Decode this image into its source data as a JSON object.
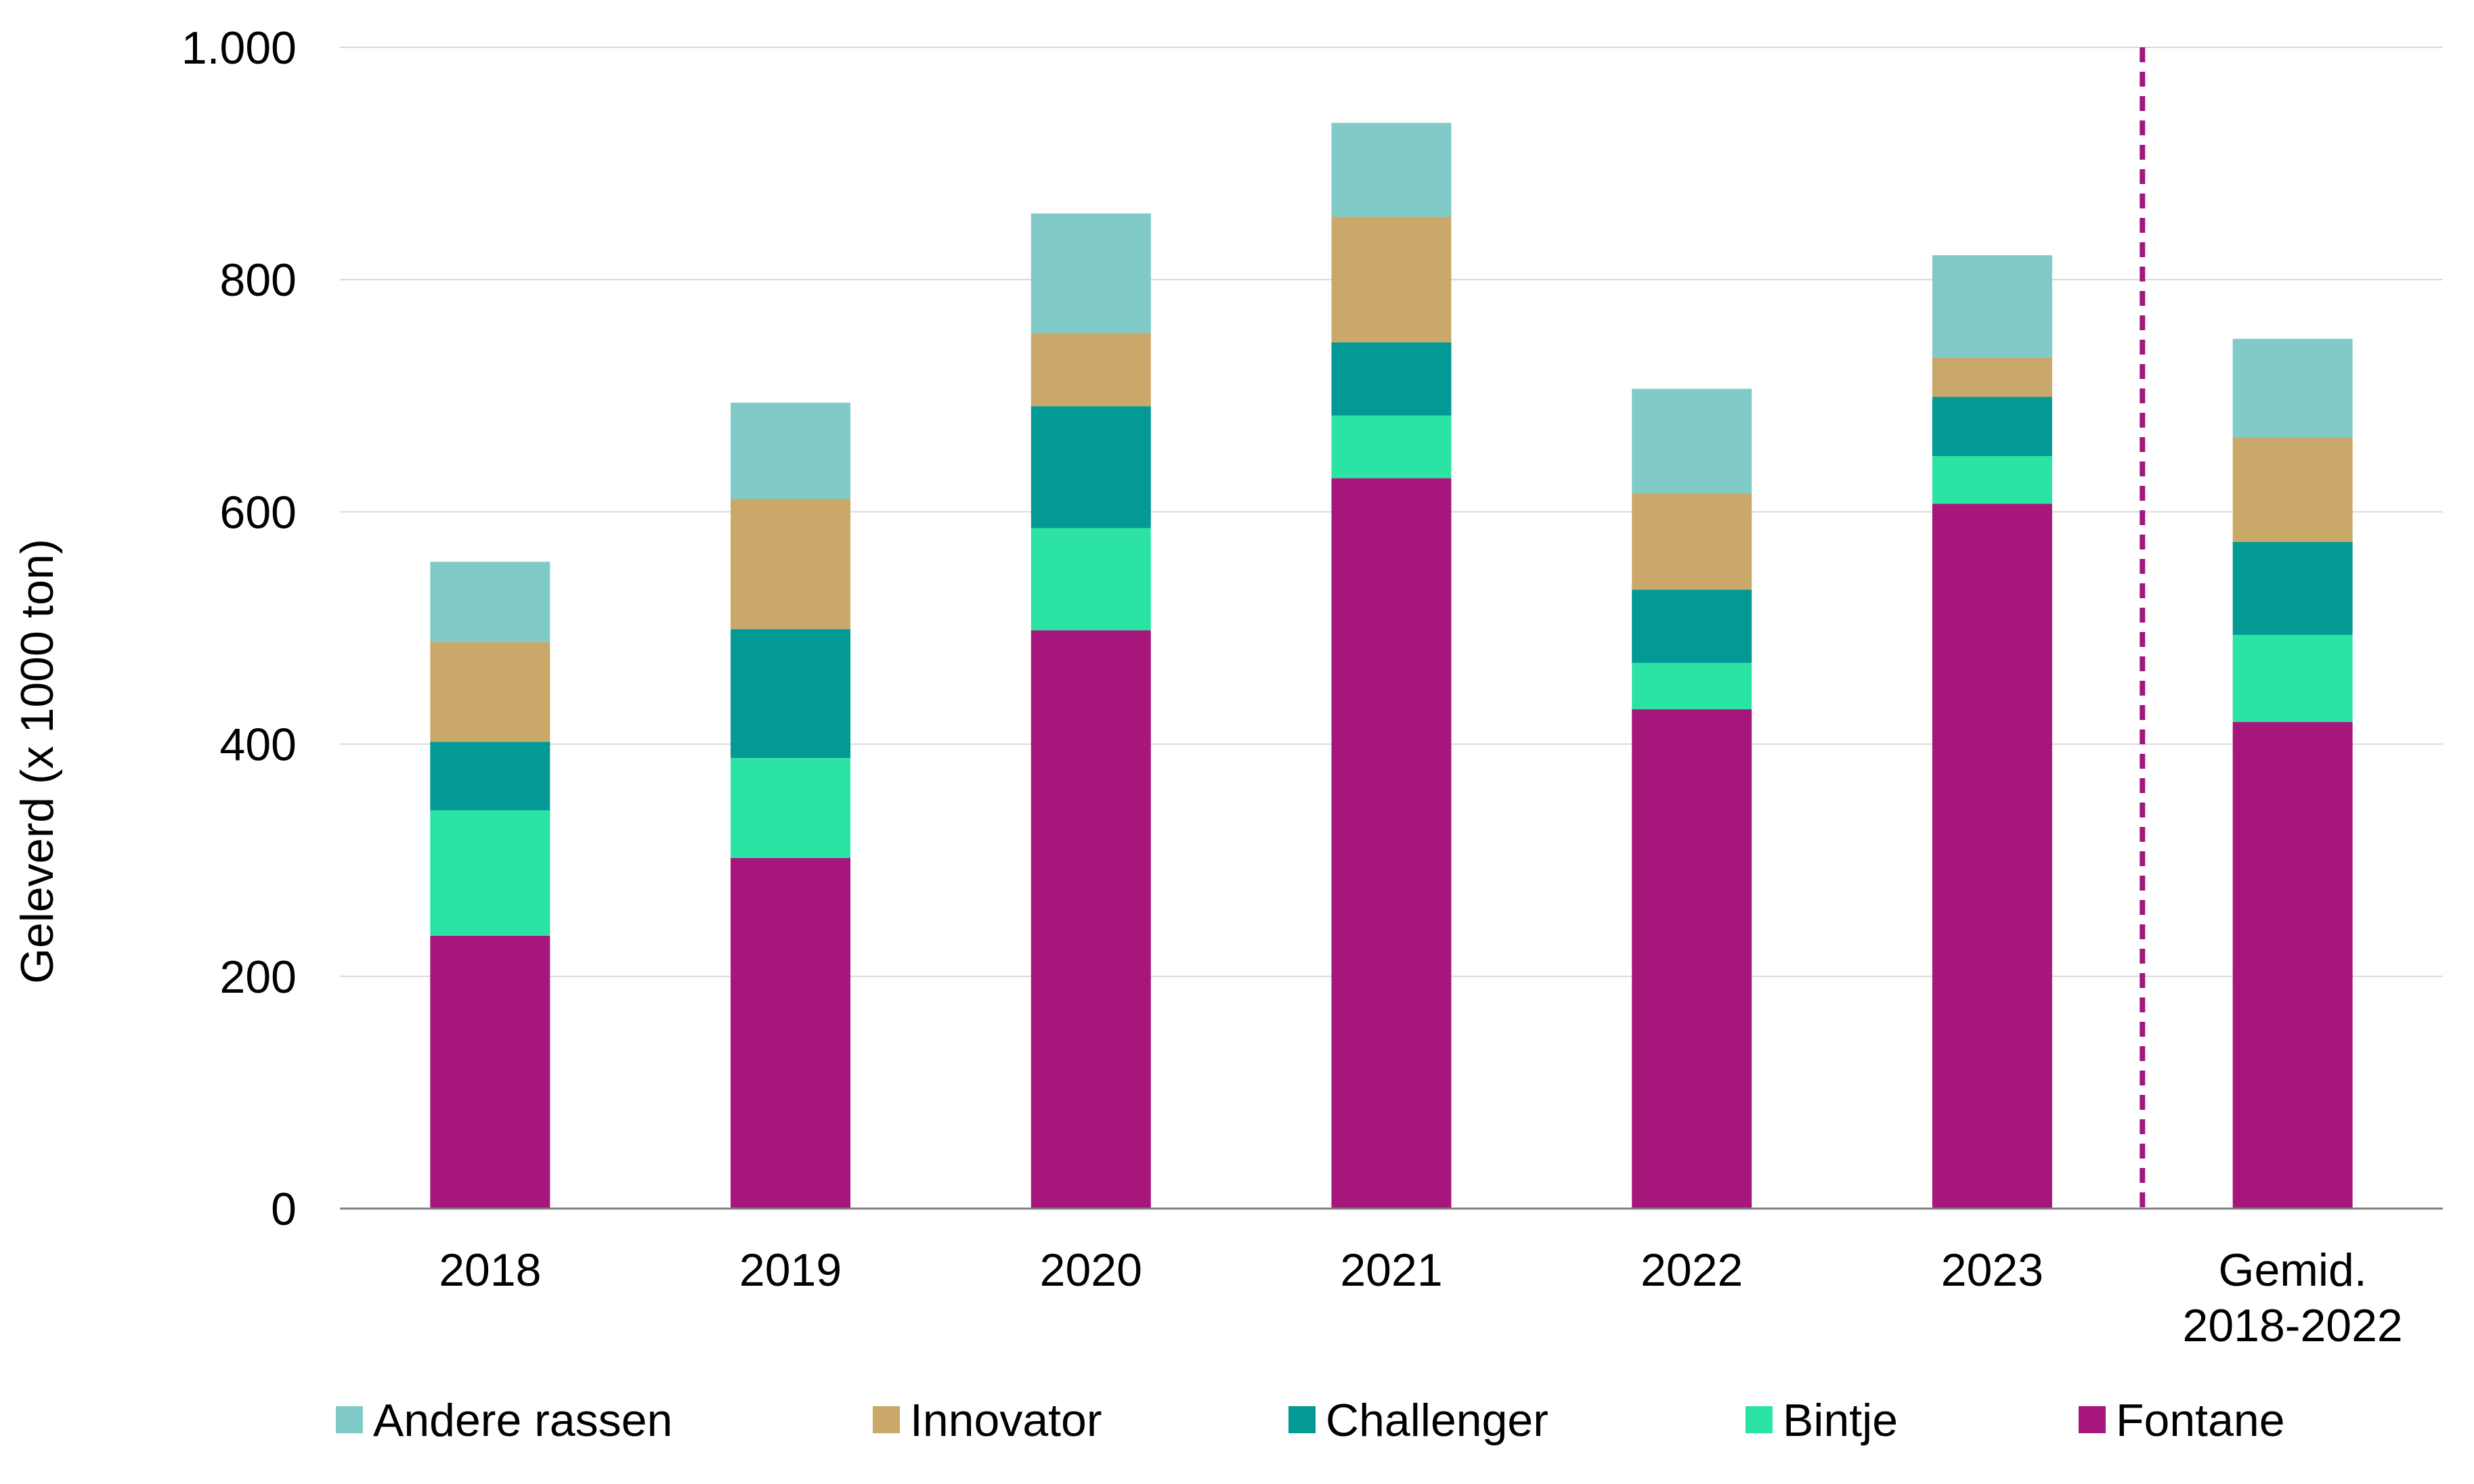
{
  "chart_data": {
    "type": "bar",
    "stacked": true,
    "title": "",
    "xlabel": "",
    "ylabel": "Geleverd (x 1000 ton)",
    "ylim": [
      0,
      1000
    ],
    "yticks": [
      0,
      200,
      400,
      600,
      800,
      1000
    ],
    "ytick_labels": [
      "0",
      "200",
      "400",
      "600",
      "800",
      "1.000"
    ],
    "grid": true,
    "legend_position": "bottom",
    "categories": [
      [
        "2018"
      ],
      [
        "2019"
      ],
      [
        "2020"
      ],
      [
        "2021"
      ],
      [
        "2022"
      ],
      [
        "2023"
      ],
      [
        "Gemid.",
        "2018-2022"
      ]
    ],
    "divider": {
      "after_category_index": 5,
      "style": "dashed",
      "color": "#a0177d"
    },
    "series": [
      {
        "name": "Fontane",
        "color": "#a6167b",
        "values": [
          235,
          302,
          498,
          629,
          430,
          607,
          419
        ]
      },
      {
        "name": "Bintje",
        "color": "#2be3a2",
        "values": [
          108,
          86,
          88,
          54,
          40,
          41,
          75
        ]
      },
      {
        "name": "Challenger",
        "color": "#039995",
        "values": [
          59,
          111,
          105,
          63,
          63,
          51,
          80
        ]
      },
      {
        "name": "Innovator",
        "color": "#c9a86a",
        "values": [
          86,
          112,
          63,
          108,
          83,
          34,
          90
        ]
      },
      {
        "name": "Andere rassen",
        "color": "#80cbc7",
        "values": [
          69,
          83,
          103,
          81,
          90,
          88,
          85
        ]
      }
    ],
    "legend_order": [
      "Andere rassen",
      "Innovator",
      "Challenger",
      "Bintje",
      "Fontane"
    ]
  }
}
